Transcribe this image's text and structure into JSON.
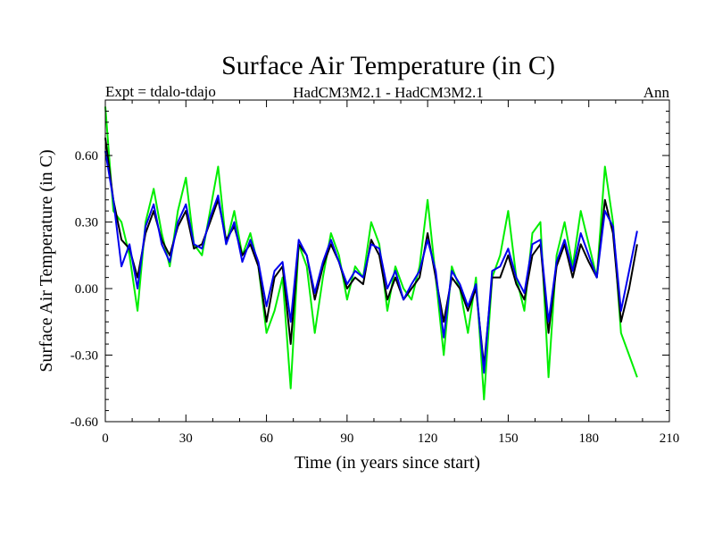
{
  "chart_data": {
    "type": "line",
    "title": "Surface Air Temperature (in C)",
    "subtitle_left": "Expt = tdalo-tdajo",
    "subtitle_center": "HadCM3M2.1 - HadCM3M2.1",
    "subtitle_right": "Ann",
    "xlabel": "Time (in years since start)",
    "ylabel": "Surface Air Temperature (in C)",
    "xlim": [
      0,
      210
    ],
    "ylim": [
      -0.6,
      0.85
    ],
    "x_ticks": [
      0,
      30,
      60,
      90,
      120,
      150,
      180,
      210
    ],
    "x_tick_labels": [
      "0",
      "30",
      "60",
      "90",
      "120",
      "150",
      "180",
      "210"
    ],
    "y_ticks": [
      -0.6,
      -0.3,
      0.0,
      0.3,
      0.6
    ],
    "y_tick_labels": [
      "-0.60",
      "-0.30",
      "0.00",
      "0.30",
      "0.60"
    ],
    "grid": false,
    "x": [
      0,
      3,
      6,
      9,
      12,
      15,
      18,
      21,
      24,
      27,
      30,
      33,
      36,
      39,
      42,
      45,
      48,
      51,
      54,
      57,
      60,
      63,
      66,
      69,
      72,
      75,
      78,
      81,
      84,
      87,
      90,
      93,
      96,
      99,
      102,
      105,
      108,
      111,
      114,
      117,
      120,
      123,
      126,
      129,
      132,
      135,
      138,
      141,
      144,
      147,
      150,
      153,
      156,
      159,
      162,
      165,
      168,
      171,
      174,
      177,
      180,
      183,
      186,
      189,
      192,
      195,
      198
    ],
    "series": [
      {
        "name": "green",
        "color": "#00ee00",
        "values": [
          0.82,
          0.35,
          0.3,
          0.15,
          -0.1,
          0.3,
          0.45,
          0.25,
          0.1,
          0.35,
          0.5,
          0.2,
          0.15,
          0.35,
          0.55,
          0.2,
          0.35,
          0.15,
          0.25,
          0.1,
          -0.2,
          -0.1,
          0.05,
          -0.45,
          0.2,
          0.1,
          -0.2,
          0.05,
          0.25,
          0.15,
          -0.05,
          0.1,
          0.05,
          0.3,
          0.2,
          -0.1,
          0.1,
          0.0,
          -0.05,
          0.1,
          0.4,
          0.05,
          -0.3,
          0.1,
          0.0,
          -0.2,
          0.05,
          -0.5,
          0.05,
          0.15,
          0.35,
          0.05,
          -0.1,
          0.25,
          0.3,
          -0.4,
          0.15,
          0.3,
          0.1,
          0.35,
          0.2,
          0.05,
          0.55,
          0.3,
          -0.2,
          -0.3,
          -0.4
        ]
      },
      {
        "name": "black",
        "color": "#000000",
        "values": [
          0.68,
          0.4,
          0.22,
          0.18,
          0.05,
          0.25,
          0.35,
          0.22,
          0.15,
          0.28,
          0.35,
          0.18,
          0.2,
          0.3,
          0.4,
          0.22,
          0.28,
          0.15,
          0.2,
          0.1,
          -0.15,
          0.05,
          0.1,
          -0.25,
          0.2,
          0.15,
          -0.05,
          0.1,
          0.2,
          0.12,
          0.0,
          0.05,
          0.02,
          0.22,
          0.15,
          -0.05,
          0.05,
          -0.05,
          0.0,
          0.05,
          0.25,
          0.05,
          -0.15,
          0.05,
          0.0,
          -0.1,
          0.0,
          -0.35,
          0.05,
          0.05,
          0.15,
          0.02,
          -0.05,
          0.15,
          0.2,
          -0.2,
          0.1,
          0.2,
          0.05,
          0.2,
          0.12,
          0.05,
          0.4,
          0.25,
          -0.15,
          0.0,
          0.2
        ]
      },
      {
        "name": "blue",
        "color": "#0000ee",
        "values": [
          0.62,
          0.4,
          0.1,
          0.2,
          0.0,
          0.28,
          0.38,
          0.2,
          0.12,
          0.3,
          0.38,
          0.2,
          0.18,
          0.32,
          0.42,
          0.2,
          0.3,
          0.12,
          0.22,
          0.12,
          -0.08,
          0.08,
          0.12,
          -0.15,
          0.22,
          0.15,
          -0.02,
          0.12,
          0.22,
          0.12,
          0.02,
          0.08,
          0.05,
          0.2,
          0.18,
          0.0,
          0.08,
          -0.05,
          0.02,
          0.08,
          0.22,
          0.08,
          -0.22,
          0.08,
          0.02,
          -0.08,
          0.02,
          -0.38,
          0.08,
          0.1,
          0.18,
          0.05,
          -0.02,
          0.2,
          0.22,
          -0.15,
          0.12,
          0.22,
          0.08,
          0.25,
          0.15,
          0.05,
          0.35,
          0.28,
          -0.1,
          0.08,
          0.26
        ]
      }
    ]
  }
}
